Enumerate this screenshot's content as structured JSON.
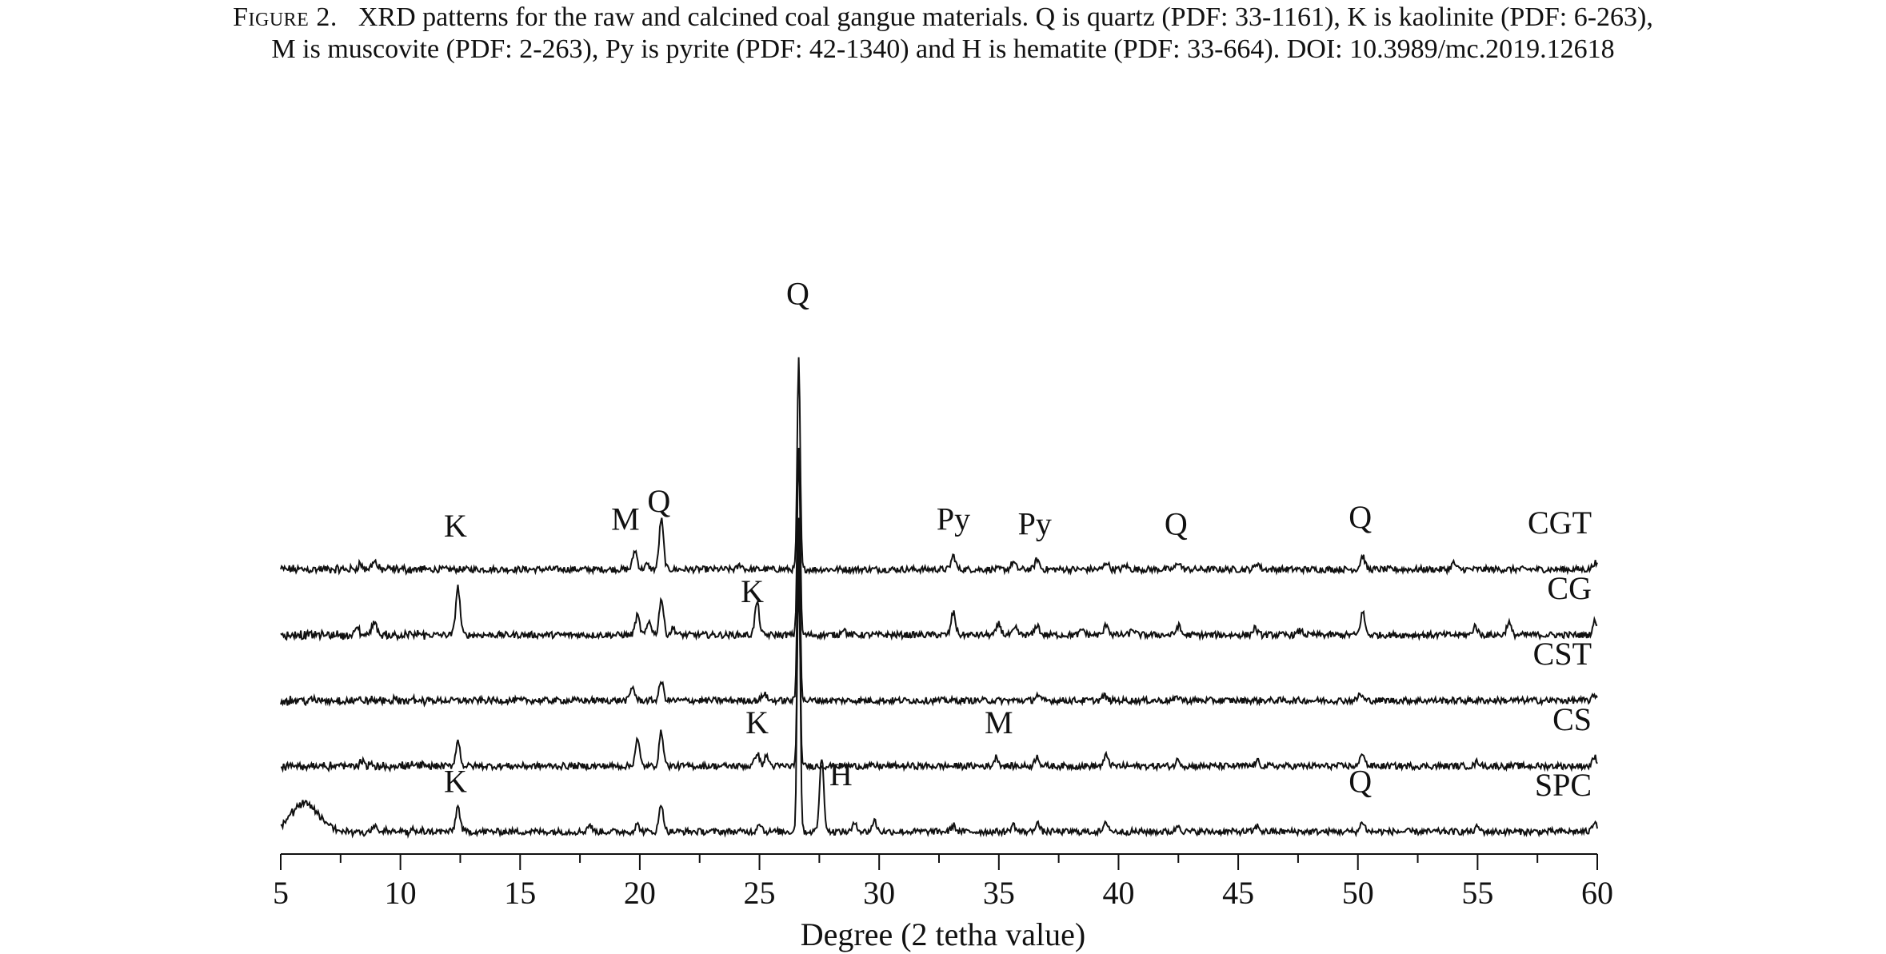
{
  "caption": {
    "figure_label": "Figure 2.",
    "line1": "XRD patterns for the raw and calcined coal gangue materials. Q is quartz (PDF: 33-1161), K is kaolinite (PDF: 6-263),",
    "line2": "M is muscovite (PDF: 2-263), Py is pyrite (PDF: 42-1340) and H is hematite (PDF: 33-664). DOI: 10.3989/mc.2019.12618"
  },
  "chart_data": {
    "type": "line",
    "title": "",
    "xlabel": "Degree (2 tetha value)",
    "ylabel": "",
    "xlim": [
      5,
      60
    ],
    "xticks": [
      5,
      10,
      15,
      20,
      25,
      30,
      35,
      40,
      45,
      50,
      55,
      60
    ],
    "grid": false,
    "legend": "series names labelled at right end of each trace",
    "color": "#111111",
    "series": [
      {
        "name": "CGT",
        "offset": 4,
        "peaks": [
          [
            8.3,
            0.12
          ],
          [
            8.9,
            0.2
          ],
          [
            19.8,
            0.42
          ],
          [
            20.3,
            0.1
          ],
          [
            20.9,
            1.1
          ],
          [
            24.2,
            0.1
          ],
          [
            26.64,
            4.6
          ],
          [
            33.1,
            0.3
          ],
          [
            35.6,
            0.16
          ],
          [
            36.6,
            0.22
          ],
          [
            39.5,
            0.16
          ],
          [
            40.3,
            0.08
          ],
          [
            42.5,
            0.16
          ],
          [
            45.8,
            0.14
          ],
          [
            50.2,
            0.3
          ],
          [
            54.0,
            0.14
          ],
          [
            59.9,
            0.15
          ]
        ]
      },
      {
        "name": "CG",
        "offset": 3,
        "peaks": [
          [
            8.2,
            0.12
          ],
          [
            8.9,
            0.32
          ],
          [
            12.4,
            1.05
          ],
          [
            19.9,
            0.42
          ],
          [
            20.4,
            0.3
          ],
          [
            20.9,
            0.8
          ],
          [
            21.4,
            0.15
          ],
          [
            24.9,
            0.72
          ],
          [
            26.64,
            4.1
          ],
          [
            28.5,
            0.14
          ],
          [
            33.1,
            0.5
          ],
          [
            35.0,
            0.24
          ],
          [
            35.7,
            0.14
          ],
          [
            36.6,
            0.22
          ],
          [
            38.5,
            0.12
          ],
          [
            39.5,
            0.24
          ],
          [
            40.6,
            0.12
          ],
          [
            42.5,
            0.2
          ],
          [
            45.7,
            0.15
          ],
          [
            47.6,
            0.1
          ],
          [
            50.2,
            0.5
          ],
          [
            54.9,
            0.2
          ],
          [
            56.3,
            0.28
          ],
          [
            59.9,
            0.3
          ]
        ]
      },
      {
        "name": "CST",
        "offset": 2,
        "peaks": [
          [
            19.7,
            0.3
          ],
          [
            20.9,
            0.42
          ],
          [
            25.2,
            0.16
          ],
          [
            26.64,
            4.0
          ],
          [
            36.6,
            0.12
          ],
          [
            39.4,
            0.1
          ],
          [
            42.5,
            0.08
          ],
          [
            50.1,
            0.14
          ],
          [
            59.9,
            0.12
          ]
        ]
      },
      {
        "name": "CS",
        "offset": 1,
        "peaks": [
          [
            8.4,
            0.12
          ],
          [
            12.4,
            0.55
          ],
          [
            19.9,
            0.58
          ],
          [
            20.9,
            0.75
          ],
          [
            24.9,
            0.3
          ],
          [
            25.3,
            0.22
          ],
          [
            26.64,
            4.0
          ],
          [
            34.9,
            0.2
          ],
          [
            36.6,
            0.22
          ],
          [
            39.5,
            0.24
          ],
          [
            42.5,
            0.14
          ],
          [
            45.8,
            0.1
          ],
          [
            50.2,
            0.3
          ],
          [
            55.0,
            0.1
          ],
          [
            59.9,
            0.2
          ]
        ]
      },
      {
        "name": "SPC",
        "offset": 0,
        "peaks": [
          [
            6.0,
            0.6
          ],
          [
            8.9,
            0.15
          ],
          [
            12.4,
            0.55
          ],
          [
            17.9,
            0.15
          ],
          [
            19.9,
            0.15
          ],
          [
            20.9,
            0.6
          ],
          [
            25.0,
            0.2
          ],
          [
            26.64,
            6.6
          ],
          [
            27.6,
            1.6
          ],
          [
            29.0,
            0.2
          ],
          [
            29.8,
            0.24
          ],
          [
            33.1,
            0.14
          ],
          [
            35.6,
            0.15
          ],
          [
            36.6,
            0.2
          ],
          [
            39.5,
            0.2
          ],
          [
            42.5,
            0.14
          ],
          [
            45.8,
            0.12
          ],
          [
            50.2,
            0.22
          ],
          [
            55.0,
            0.1
          ],
          [
            59.9,
            0.24
          ]
        ]
      }
    ],
    "annotations": [
      {
        "text": "Q",
        "x": 26.6,
        "series": "CGT",
        "level": 5.5
      },
      {
        "text": "K",
        "x": 12.3,
        "series": "CGT",
        "level": 0.4
      },
      {
        "text": "M",
        "x": 19.4,
        "series": "CGT",
        "level": 0.55
      },
      {
        "text": "Q",
        "x": 20.8,
        "series": "CGT",
        "level": 0.95
      },
      {
        "text": "Py",
        "x": 33.1,
        "series": "CGT",
        "level": 0.55
      },
      {
        "text": "Py",
        "x": 36.5,
        "series": "CGT",
        "level": 0.45
      },
      {
        "text": "Q",
        "x": 42.4,
        "series": "CGT",
        "level": 0.45
      },
      {
        "text": "Q",
        "x": 50.1,
        "series": "CGT",
        "level": 0.6
      },
      {
        "text": "K",
        "x": 24.7,
        "series": "CG",
        "level": 0.4
      },
      {
        "text": "K",
        "x": 24.9,
        "series": "CS",
        "level": 0.4
      },
      {
        "text": "M",
        "x": 35.0,
        "series": "CS",
        "level": 0.4
      },
      {
        "text": "K",
        "x": 12.3,
        "series": "SPC",
        "level": 0.55
      },
      {
        "text": "H",
        "x": 28.4,
        "series": "SPC",
        "level": 0.7
      },
      {
        "text": "Q",
        "x": 50.1,
        "series": "SPC",
        "level": 0.55
      }
    ]
  }
}
